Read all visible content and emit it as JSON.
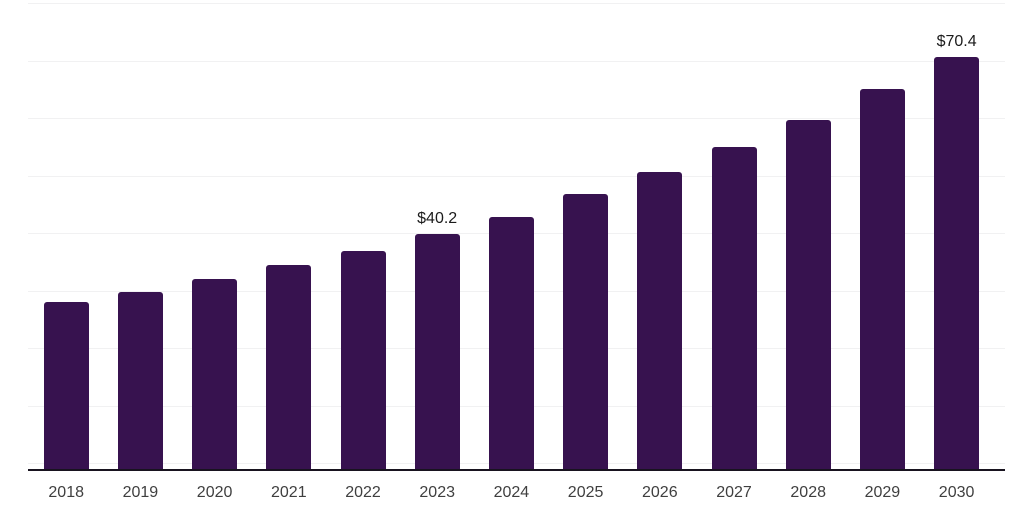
{
  "chart_data": {
    "type": "bar",
    "title": "",
    "xlabel": "",
    "ylabel": "",
    "categories": [
      "2018",
      "2019",
      "2020",
      "2021",
      "2022",
      "2023",
      "2024",
      "2025",
      "2026",
      "2027",
      "2028",
      "2029",
      "2030"
    ],
    "values": [
      28.7,
      30.3,
      32.5,
      35.0,
      37.3,
      40.2,
      43.2,
      47.0,
      50.8,
      55.0,
      59.6,
      64.9,
      70.4
    ],
    "annotations": [
      {
        "category": "2023",
        "index": 5,
        "text": "$40.2"
      },
      {
        "category": "2030",
        "index": 12,
        "text": "$70.4"
      }
    ],
    "ylim": [
      0,
      80
    ],
    "grid": "horizontal, every 10 units, no y tick labels",
    "legend": "none",
    "colors": {
      "bar": "#37124f",
      "axis_line": "#18131f",
      "gridline": "#f1f1f2",
      "tick_label": "#3f3f3f",
      "annotation_text": "#1b1b1b"
    }
  }
}
